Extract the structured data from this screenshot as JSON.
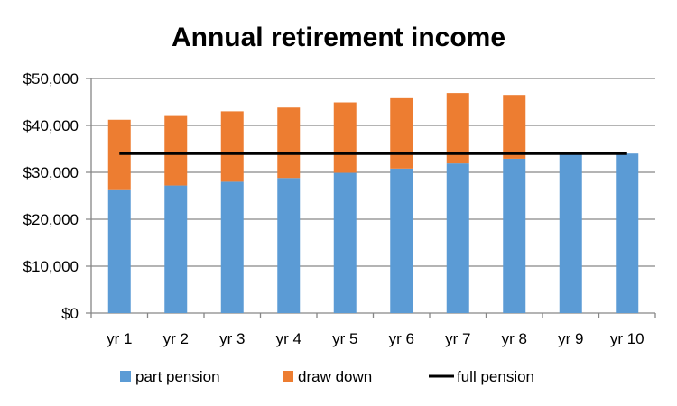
{
  "chart_data": {
    "type": "bar",
    "stacked": true,
    "title": "Annual retirement income",
    "xlabel": "",
    "ylabel": "",
    "categories": [
      "yr 1",
      "yr 2",
      "yr 3",
      "yr 4",
      "yr 5",
      "yr 6",
      "yr 7",
      "yr 8",
      "yr 9",
      "yr 10"
    ],
    "ylim": [
      0,
      50000
    ],
    "yticks": [
      0,
      10000,
      20000,
      30000,
      40000,
      50000
    ],
    "ytick_labels": [
      "$0",
      "$10,000",
      "$20,000",
      "$30,000",
      "$40,000",
      "$50,000"
    ],
    "grid": true,
    "legend_position": "bottom",
    "series": [
      {
        "name": "part pension",
        "kind": "bar",
        "color": "#5B9BD5",
        "values": [
          26200,
          27200,
          28000,
          28800,
          29900,
          30800,
          31900,
          32900,
          33900,
          34000
        ]
      },
      {
        "name": "draw down",
        "kind": "bar",
        "color": "#ED7D31",
        "values": [
          15000,
          14800,
          15000,
          15000,
          15000,
          15000,
          15000,
          13600,
          0,
          0
        ]
      },
      {
        "name": "full pension",
        "kind": "line",
        "color": "#000000",
        "values": [
          34000,
          34000,
          34000,
          34000,
          34000,
          34000,
          34000,
          34000,
          34000,
          34000
        ]
      }
    ]
  }
}
